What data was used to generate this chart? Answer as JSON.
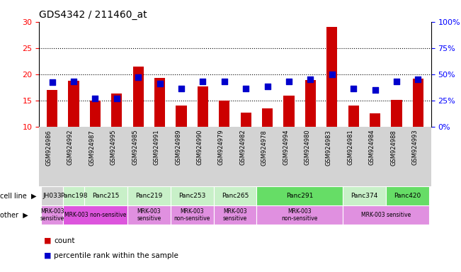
{
  "title": "GDS4342 / 211460_at",
  "samples": [
    "GSM924986",
    "GSM924992",
    "GSM924987",
    "GSM924995",
    "GSM924985",
    "GSM924991",
    "GSM924989",
    "GSM924990",
    "GSM924979",
    "GSM924982",
    "GSM924978",
    "GSM924994",
    "GSM924980",
    "GSM924983",
    "GSM924981",
    "GSM924984",
    "GSM924988",
    "GSM924993"
  ],
  "counts": [
    17.0,
    18.7,
    15.0,
    16.3,
    21.5,
    19.3,
    14.0,
    17.6,
    15.0,
    12.7,
    13.5,
    15.9,
    18.9,
    29.0,
    14.0,
    12.5,
    15.1,
    19.2
  ],
  "percentiles": [
    42,
    43,
    27,
    27,
    47,
    41,
    36,
    43,
    43,
    36,
    38,
    43,
    45,
    50,
    36,
    35,
    43,
    45
  ],
  "cell_line_groups": [
    {
      "name": "JH033",
      "start": 0,
      "end": 1,
      "color": "#d3d3d3"
    },
    {
      "name": "Panc198",
      "start": 1,
      "end": 2,
      "color": "#c8f0c8"
    },
    {
      "name": "Panc215",
      "start": 2,
      "end": 4,
      "color": "#c8f0c8"
    },
    {
      "name": "Panc219",
      "start": 4,
      "end": 6,
      "color": "#c8f0c8"
    },
    {
      "name": "Panc253",
      "start": 6,
      "end": 8,
      "color": "#c8f0c8"
    },
    {
      "name": "Panc265",
      "start": 8,
      "end": 10,
      "color": "#c8f0c8"
    },
    {
      "name": "Panc291",
      "start": 10,
      "end": 14,
      "color": "#66dd66"
    },
    {
      "name": "Panc374",
      "start": 14,
      "end": 16,
      "color": "#c8f0c8"
    },
    {
      "name": "Panc420",
      "start": 16,
      "end": 18,
      "color": "#66dd66"
    }
  ],
  "other_groups": [
    {
      "name": "MRK-003\nsensitive",
      "start": 0,
      "end": 1,
      "color": "#e090e0"
    },
    {
      "name": "MRK-003 non-sensitive",
      "start": 1,
      "end": 4,
      "color": "#dd55dd"
    },
    {
      "name": "MRK-003\nsensitive",
      "start": 4,
      "end": 6,
      "color": "#e090e0"
    },
    {
      "name": "MRK-003\nnon-sensitive",
      "start": 6,
      "end": 8,
      "color": "#e090e0"
    },
    {
      "name": "MRK-003\nsensitive",
      "start": 8,
      "end": 10,
      "color": "#e090e0"
    },
    {
      "name": "MRK-003\nnon-sensitive",
      "start": 10,
      "end": 14,
      "color": "#e090e0"
    },
    {
      "name": "MRK-003 sensitive",
      "start": 14,
      "end": 18,
      "color": "#e090e0"
    }
  ],
  "ylim_left": [
    10,
    30
  ],
  "ylim_right": [
    0,
    100
  ],
  "yticks_left": [
    10,
    15,
    20,
    25,
    30
  ],
  "yticks_right": [
    0,
    25,
    50,
    75,
    100
  ],
  "bar_color": "#cc0000",
  "dot_color": "#0000cc",
  "background_color": "#ffffff",
  "dotted_lines": [
    15,
    20,
    25
  ],
  "bar_width": 0.5,
  "dot_size": 35,
  "xtick_bg": "#d3d3d3"
}
